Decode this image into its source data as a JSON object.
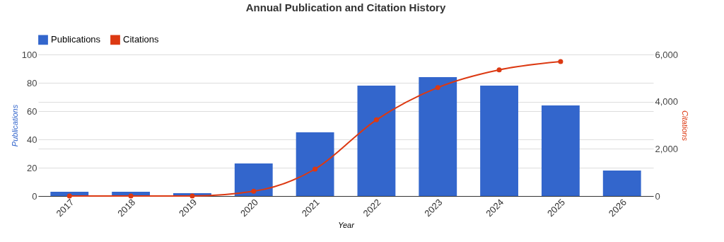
{
  "chart_data": {
    "type": "bar",
    "title": "Annual Publication and Citation History",
    "xlabel": "Year",
    "ylabel": "Publications",
    "y2label": "Citations",
    "categories": [
      "2017",
      "2018",
      "2019",
      "2020",
      "2021",
      "2022",
      "2023",
      "2024",
      "2025",
      "2026"
    ],
    "series": [
      {
        "name": "Publications",
        "color": "#3366cc",
        "values": [
          3,
          3,
          2,
          23,
          45,
          78,
          84,
          78,
          64,
          18
        ]
      },
      {
        "name": "Citations",
        "type": "line",
        "axis": "y2",
        "color": "#dc3912",
        "values": [
          0,
          0,
          0,
          200,
          1140,
          3230,
          4600,
          5350,
          5700,
          null
        ]
      }
    ],
    "ylim": [
      0,
      100
    ],
    "yticks": [
      0,
      20,
      40,
      60,
      80,
      100
    ],
    "y2lim": [
      0,
      6000
    ],
    "y2ticks": [
      {
        "value": 0,
        "label": "0"
      },
      {
        "value": 2000,
        "label": "2,000"
      },
      {
        "value": 4000,
        "label": "4,000"
      },
      {
        "value": 6000,
        "label": "6,000"
      }
    ],
    "grid": "y",
    "legend": "top left",
    "marker": "circle",
    "line_style": "solid"
  }
}
